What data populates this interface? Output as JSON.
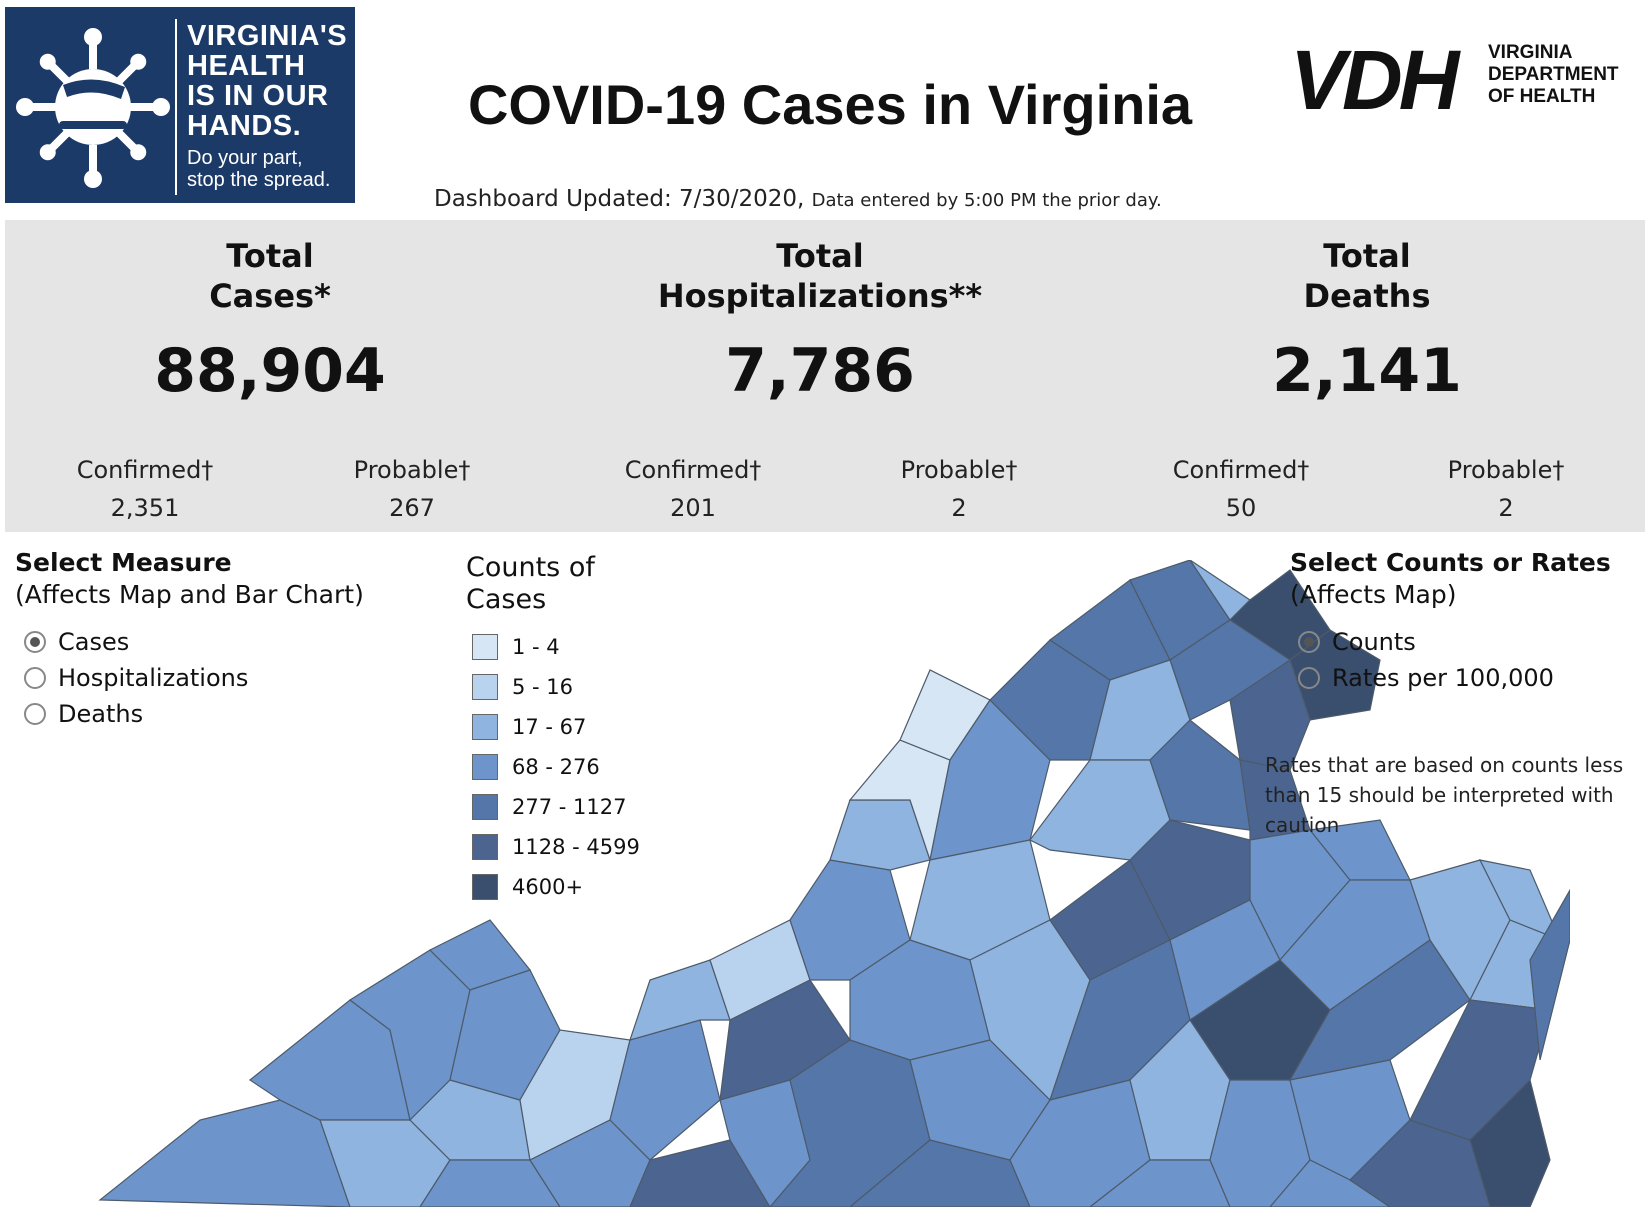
{
  "header": {
    "badge_line1": "VIRGINIA'S",
    "badge_line2": "HEALTH",
    "badge_line3": "IS IN OUR",
    "badge_line4": "HANDS.",
    "badge_sub1": "Do your part,",
    "badge_sub2": "stop the spread.",
    "title": "COVID-19 Cases in Virginia",
    "vdh_letters": "VDH",
    "vdh_org1": "VIRGINIA",
    "vdh_org2": "DEPARTMENT",
    "vdh_org3": "OF HEALTH",
    "updated_label": "Dashboard Updated: 7/30/2020,",
    "updated_note": "Data entered by 5:00 PM the prior day."
  },
  "summary": {
    "cases": {
      "title1": "Total",
      "title2": "Cases*",
      "value": "88,904",
      "confirmed_label": "Confirmed†",
      "confirmed_value": "2,351",
      "probable_label": "Probable†",
      "probable_value": "267"
    },
    "hospitalizations": {
      "title1": "Total",
      "title2": "Hospitalizations**",
      "value": "7,786",
      "confirmed_label": "Confirmed†",
      "confirmed_value": "201",
      "probable_label": "Probable†",
      "probable_value": "2"
    },
    "deaths": {
      "title1": "Total",
      "title2": "Deaths",
      "value": "2,141",
      "confirmed_label": "Confirmed†",
      "confirmed_value": "50",
      "probable_label": "Probable†",
      "probable_value": "2"
    }
  },
  "measure": {
    "heading": "Select Measure",
    "subheading": "(Affects Map and Bar Chart)",
    "options": [
      "Cases",
      "Hospitalizations",
      "Deaths"
    ],
    "selected": "Cases"
  },
  "legend": {
    "title1": "Counts of",
    "title2": "Cases",
    "items": [
      {
        "label": "1 - 4",
        "color": "#d7e6f5"
      },
      {
        "label": "5 - 16",
        "color": "#b9d3ef"
      },
      {
        "label": "17 - 67",
        "color": "#8fb4e0"
      },
      {
        "label": "68 - 276",
        "color": "#6d95cc"
      },
      {
        "label": "277 - 1127",
        "color": "#5476a8"
      },
      {
        "label": "1128 - 4599",
        "color": "#4b6590"
      },
      {
        "label": "4600+",
        "color": "#3a4e6e"
      }
    ]
  },
  "counts_rates": {
    "heading": "Select Counts or Rates",
    "subheading": "(Affects Map)",
    "options": [
      "Counts",
      "Rates per 100,000"
    ],
    "selected": "Counts",
    "note": "Rates that are based on counts less than 15 should be interpreted with caution"
  },
  "colors": {
    "badge_bg": "#1b3a68",
    "band_bg": "#e5e5e5",
    "county_border": "#4d5a6a"
  }
}
